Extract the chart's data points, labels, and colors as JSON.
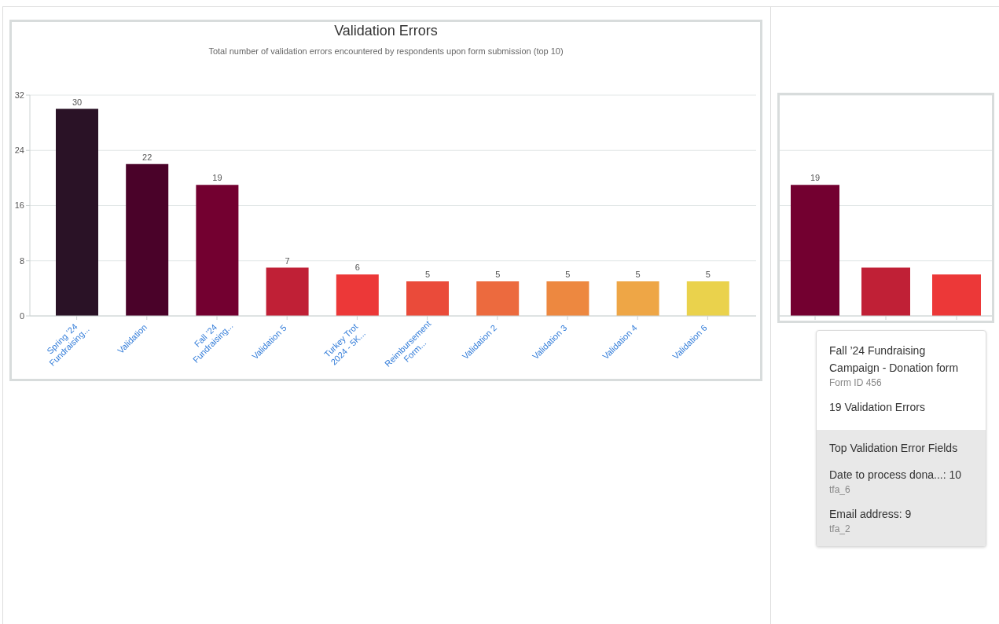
{
  "chart_data": [
    {
      "type": "bar",
      "title": "Validation Errors",
      "subtitle": "Total number of validation errors encountered by respondents upon form submission (top 10)",
      "categories": [
        "Spring ’24 Fundraising...",
        "Validation",
        "Fall ’24 Fundraising...",
        "Validation 5",
        "Turkey Trot 2024 - 5K...",
        "Reimbursement Form...",
        "Validation 2",
        "Validation 3",
        "Validation 4",
        "Validation 6"
      ],
      "values": [
        30,
        22,
        19,
        7,
        6,
        5,
        5,
        5,
        5,
        5
      ],
      "colors": [
        "#2a1226",
        "#4a0229",
        "#730030",
        "#c02036",
        "#ec3838",
        "#ea4b3a",
        "#ec6a3e",
        "#ed8840",
        "#eea646",
        "#ead24c"
      ],
      "ylim": [
        0,
        32
      ],
      "yticks": [
        0,
        8,
        16,
        24,
        32
      ],
      "grid": "y",
      "data_labels": true
    },
    {
      "type": "bar",
      "categories": [
        null,
        null,
        null
      ],
      "values": [
        19,
        7,
        6
      ],
      "colors": [
        "#730030",
        "#c02036",
        "#ec3838"
      ],
      "value_labels": [
        "19",
        null,
        null
      ],
      "ylim": [
        0,
        32
      ],
      "yticks": [
        {
          "value": 0,
          "label": null
        },
        {
          "value": 8,
          "label": null
        },
        {
          "value": 16,
          "label": null
        },
        {
          "value": 24,
          "label": null
        },
        {
          "value": 32,
          "label": null
        }
      ],
      "grid": "y",
      "tick_labels": false,
      "annotations": [
        "Fall ’24 Fundraising Campaign - Donation form",
        "Form ID 456",
        "19 Validation Errors",
        "Top Validation Error Fields",
        "Date to process dona...: 10",
        "tfa_6",
        "Email address: 9",
        "tfa_2"
      ]
    }
  ]
}
